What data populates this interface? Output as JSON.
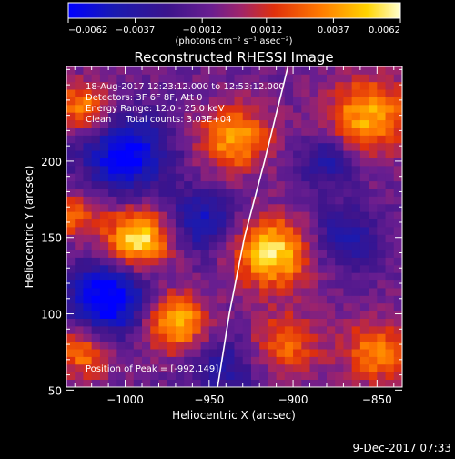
{
  "chart_data": {
    "type": "heatmap",
    "title": "Reconstructed RHESSI Image",
    "xlabel": "Heliocentric X (arcsec)",
    "ylabel": "Heliocentric Y (arcsec)",
    "xlim": [
      -1035,
      -835
    ],
    "ylim": [
      52,
      262
    ],
    "x_ticks": [
      -1000,
      -950,
      -900,
      -850
    ],
    "x_tick_labels": [
      "−1000",
      "−950",
      "−900",
      "−850"
    ],
    "y_ticks": [
      50,
      100,
      150,
      200
    ],
    "y_tick_labels": [
      "50",
      "100",
      "150",
      "200"
    ],
    "colorbar": {
      "range": [
        -0.0062,
        0.0062
      ],
      "ticks": [
        -0.0062,
        -0.0037,
        -0.0012,
        0.0012,
        0.0037,
        0.0062
      ],
      "tick_labels": [
        "−0.0062",
        "−0.0037",
        "−0.0012",
        "0.0012",
        "0.0037",
        "0.0062"
      ],
      "unit_label": "(photons cm⁻² s⁻¹ asec⁻²)"
    },
    "annotations": [
      "18-Aug-2017 12:23:12.000 to 12:53:12.000",
      "Detectors: 3F 6F 8F, Att 0",
      "Energy Range: 12.0 - 25.0 keV",
      "Clean     Total counts: 3.03E+04"
    ],
    "peak_label": "Position of Peak = [-992,149]",
    "peak": [
      -992,
      149
    ],
    "grid": false,
    "colormap": [
      "#0000ff",
      "#2a0a8c",
      "#5a1f9e",
      "#7c2a8a",
      "#c81e1e",
      "#ff6a00",
      "#ffd400",
      "#ffffe0"
    ],
    "sources": [
      {
        "x": -992,
        "y": 149,
        "amp": 1.0,
        "sigma": 14
      },
      {
        "x": -912,
        "y": 140,
        "amp": 0.95,
        "sigma": 16
      },
      {
        "x": -935,
        "y": 215,
        "amp": 0.72,
        "sigma": 15
      },
      {
        "x": -855,
        "y": 230,
        "amp": 0.78,
        "sigma": 17
      },
      {
        "x": -970,
        "y": 95,
        "amp": 0.85,
        "sigma": 13
      },
      {
        "x": -1025,
        "y": 75,
        "amp": 0.6,
        "sigma": 12
      },
      {
        "x": -1025,
        "y": 235,
        "amp": 0.68,
        "sigma": 12
      },
      {
        "x": -905,
        "y": 80,
        "amp": 0.55,
        "sigma": 14
      },
      {
        "x": -850,
        "y": 75,
        "amp": 0.65,
        "sigma": 14
      },
      {
        "x": -1030,
        "y": 165,
        "amp": 0.5,
        "sigma": 11
      },
      {
        "x": -1000,
        "y": 205,
        "amp": -0.8,
        "sigma": 18
      },
      {
        "x": -1010,
        "y": 110,
        "amp": -0.9,
        "sigma": 17
      },
      {
        "x": -955,
        "y": 160,
        "amp": -0.55,
        "sigma": 14
      },
      {
        "x": -870,
        "y": 150,
        "amp": -0.5,
        "sigma": 14
      },
      {
        "x": -940,
        "y": 65,
        "amp": -0.4,
        "sigma": 14
      },
      {
        "x": -880,
        "y": 200,
        "amp": -0.45,
        "sigma": 12
      }
    ],
    "limb_curve": [
      [
        -945,
        52
      ],
      [
        -938,
        100
      ],
      [
        -929,
        150
      ],
      [
        -917,
        200
      ],
      [
        -903,
        262
      ]
    ]
  },
  "footer": {
    "date": "9-Dec-2017 07:33"
  }
}
